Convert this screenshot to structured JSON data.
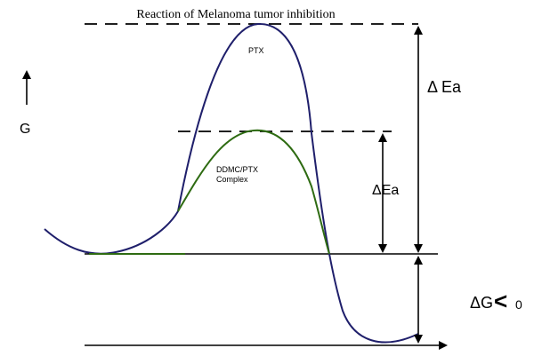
{
  "diagram": {
    "title": "Reaction of Melanoma tumor inhibition",
    "y_axis_label": "G",
    "curve_ptx_label": "PTX",
    "curve_complex_label_line1": "DDMC/PTX",
    "curve_complex_label_line2": "Complex",
    "delta_ea_large_label": "Δ Ea",
    "delta_ea_small_label": "ΔEa",
    "delta_g_label": "ΔG",
    "delta_g_relation": "<",
    "delta_g_value": "0"
  },
  "colors": {
    "ptx_curve": "#1f1f6b",
    "complex_curve": "#2e6b12",
    "lines": "#000000"
  }
}
